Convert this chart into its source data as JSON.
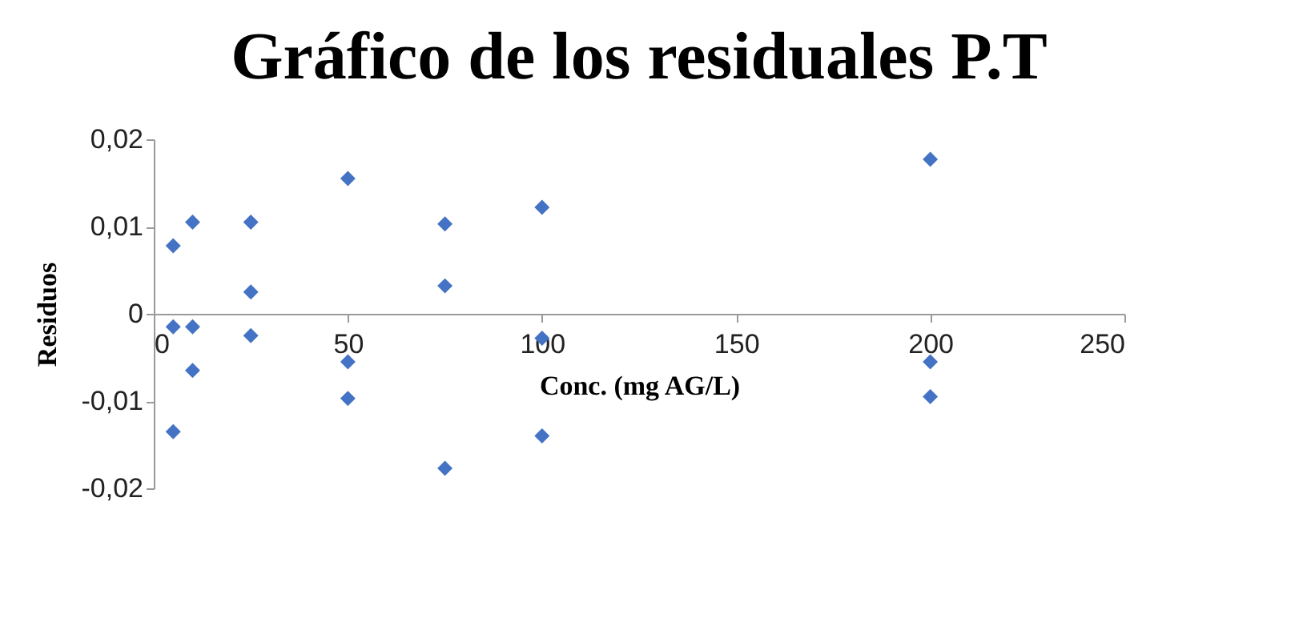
{
  "chart_data": {
    "type": "scatter",
    "title": "Gráfico de los residuales P.T",
    "xlabel": "Conc. (mg AG/L)",
    "ylabel": "Residuos",
    "x": [
      5,
      5,
      5,
      10,
      10,
      10,
      25,
      25,
      25,
      50,
      50,
      50,
      75,
      75,
      75,
      100,
      100,
      100,
      200,
      200,
      200
    ],
    "values": [
      0.0078,
      -0.0015,
      -0.0135,
      0.0105,
      -0.0015,
      -0.0065,
      0.0105,
      0.0025,
      -0.0025,
      0.0155,
      -0.0055,
      -0.0097,
      0.0103,
      0.0032,
      -0.0177,
      0.0122,
      -0.0028,
      -0.014,
      0.0177,
      -0.0055,
      -0.0095
    ],
    "color": "#4472c4",
    "marker": "diamond",
    "grid": false,
    "xlim": [
      0,
      250
    ],
    "xticks": [
      0,
      50,
      100,
      150,
      200,
      250
    ],
    "ylim": [
      -0.02,
      0.02
    ],
    "yticks": [
      {
        "value": -0.02,
        "label": "-0,02"
      },
      {
        "value": -0.01,
        "label": "-0,01"
      },
      {
        "value": 0,
        "label": "0"
      },
      {
        "value": 0.01,
        "label": "0,01"
      },
      {
        "value": 0.02,
        "label": "0,02"
      }
    ]
  }
}
